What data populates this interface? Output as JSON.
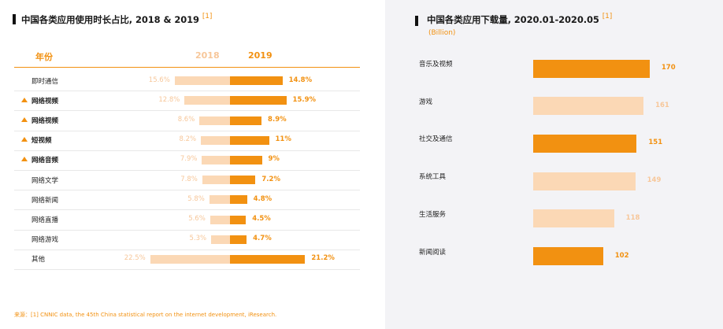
{
  "left_chart": {
    "title": "中国各类应用使用时长占比, 2018 & 2019",
    "ref": "[1]",
    "header_category": "年份",
    "header_2018": "2018",
    "header_2019": "2019",
    "source": "来源：[1] CNNIC data, the 45th China statistical report on the internet development, iResearch."
  },
  "right_chart": {
    "title": "中国各类应用下载量, 2020.01-2020.05",
    "ref": "[1]",
    "subtitle": "(Billion)"
  },
  "colors": {
    "accent": "#f29111",
    "light": "#fbd8b5",
    "light_text": "#f7c79a"
  },
  "chart_data": [
    {
      "type": "bar",
      "title": "中国各类应用使用时长占比, 2018 & 2019",
      "categories": [
        "即时通信",
        "网络视频",
        "网络视频",
        "短视频",
        "网络音频",
        "网络文学",
        "网络新闻",
        "网络直播",
        "网络游戏",
        "其他"
      ],
      "marked": [
        false,
        true,
        true,
        true,
        true,
        false,
        false,
        false,
        false,
        false
      ],
      "series": [
        {
          "name": "2018",
          "values": [
            15.6,
            12.8,
            8.6,
            8.2,
            7.9,
            7.8,
            5.8,
            5.6,
            5.3,
            22.5
          ],
          "labels": [
            "15.6%",
            "12.8%",
            "8.6%",
            "8.2%",
            "7.9%",
            "7.8%",
            "5.8%",
            "5.6%",
            "5.3%",
            "22.5%"
          ]
        },
        {
          "name": "2019",
          "values": [
            14.8,
            15.9,
            8.9,
            11,
            9,
            7.2,
            4.8,
            4.5,
            4.7,
            21.2
          ],
          "labels": [
            "14.8%",
            "15.9%",
            "8.9%",
            "11%",
            "9%",
            "7.2%",
            "4.8%",
            "4.5%",
            "4.7%",
            "21.2%"
          ]
        }
      ]
    },
    {
      "type": "bar",
      "title": "中国各类应用下载量, 2020.01-2020.05",
      "ylabel": "(Billion)",
      "categories": [
        "音乐及视频",
        "游戏",
        "社交及通信",
        "系统工具",
        "生活服务",
        "新闻阅读"
      ],
      "values": [
        170,
        161,
        151,
        149,
        118,
        102
      ],
      "highlight": [
        true,
        false,
        true,
        false,
        false,
        true
      ]
    }
  ]
}
